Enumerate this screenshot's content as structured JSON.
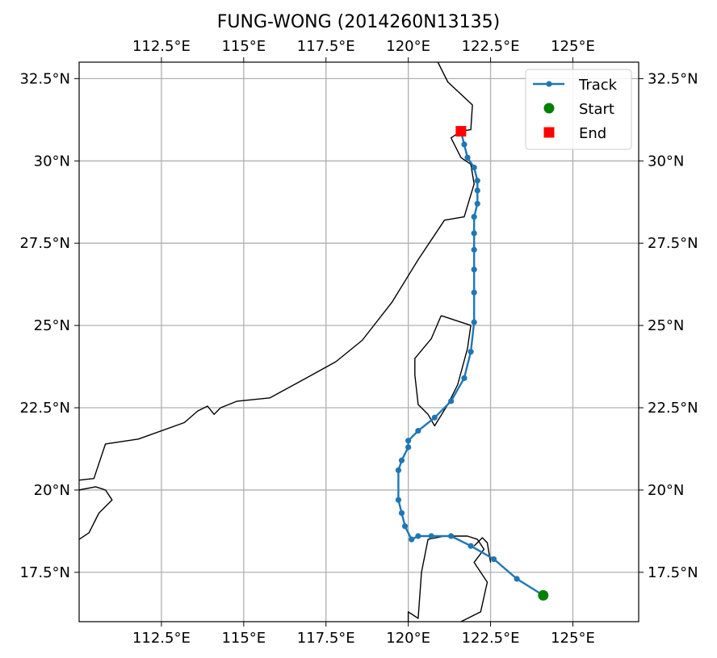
{
  "chart_data": {
    "type": "line",
    "title": "FUNG-WONG (2014260N13135)",
    "xlabel": "",
    "ylabel": "",
    "xlim": [
      110.0,
      127.0
    ],
    "ylim": [
      16.0,
      33.0
    ],
    "x_ticks": [
      112.5,
      115,
      117.5,
      120,
      122.5,
      125
    ],
    "x_tick_labels": [
      "112.5°E",
      "115°E",
      "117.5°E",
      "120°E",
      "122.5°E",
      "125°E"
    ],
    "y_ticks": [
      17.5,
      20,
      22.5,
      25,
      27.5,
      30,
      32.5
    ],
    "y_tick_labels": [
      "17.5°N",
      "20°N",
      "22.5°N",
      "25°N",
      "27.5°N",
      "30°N",
      "32.5°N"
    ],
    "grid": true,
    "legend_position": "top-right",
    "colors": {
      "track": "#1f77b4",
      "start": "#008000",
      "end": "#ff0000",
      "coast": "#000000",
      "grid": "#b0b0b0"
    },
    "series": [
      {
        "name": "Track",
        "points": [
          [
            124.1,
            16.8
          ],
          [
            123.3,
            17.3
          ],
          [
            122.6,
            17.9
          ],
          [
            121.9,
            18.3
          ],
          [
            121.3,
            18.6
          ],
          [
            120.7,
            18.6
          ],
          [
            120.3,
            18.6
          ],
          [
            120.1,
            18.5
          ],
          [
            119.9,
            18.9
          ],
          [
            119.8,
            19.3
          ],
          [
            119.7,
            19.7
          ],
          [
            119.7,
            20.6
          ],
          [
            119.8,
            20.9
          ],
          [
            120.0,
            21.3
          ],
          [
            120.0,
            21.5
          ],
          [
            120.3,
            21.8
          ],
          [
            120.8,
            22.2
          ],
          [
            121.3,
            22.7
          ],
          [
            121.7,
            23.4
          ],
          [
            121.9,
            24.2
          ],
          [
            122.0,
            25.1
          ],
          [
            122.0,
            26.0
          ],
          [
            122.0,
            26.7
          ],
          [
            122.0,
            27.3
          ],
          [
            122.0,
            27.8
          ],
          [
            122.0,
            28.3
          ],
          [
            122.1,
            28.7
          ],
          [
            122.1,
            29.1
          ],
          [
            122.1,
            29.4
          ],
          [
            122.0,
            29.8
          ],
          [
            121.8,
            30.1
          ],
          [
            121.7,
            30.5
          ],
          [
            121.6,
            30.9
          ]
        ]
      },
      {
        "name": "Start",
        "points": [
          [
            124.1,
            16.8
          ]
        ]
      },
      {
        "name": "End",
        "points": [
          [
            121.6,
            30.9
          ]
        ]
      }
    ],
    "coastlines": [
      [
        [
          110.0,
          20.3
        ],
        [
          110.45,
          20.35
        ],
        [
          110.8,
          21.4
        ],
        [
          111.8,
          21.55
        ],
        [
          113.2,
          22.05
        ],
        [
          113.6,
          22.4
        ],
        [
          113.9,
          22.55
        ],
        [
          114.1,
          22.3
        ],
        [
          114.3,
          22.5
        ],
        [
          114.8,
          22.7
        ],
        [
          115.8,
          22.8
        ],
        [
          116.9,
          23.4
        ],
        [
          117.8,
          23.9
        ],
        [
          118.6,
          24.55
        ],
        [
          119.5,
          25.7
        ],
        [
          120.3,
          27.0
        ],
        [
          121.1,
          28.2
        ],
        [
          121.7,
          28.3
        ],
        [
          122.0,
          29.3
        ],
        [
          121.9,
          29.9
        ],
        [
          121.6,
          30.1
        ],
        [
          121.3,
          30.7
        ],
        [
          121.6,
          30.9
        ],
        [
          121.9,
          30.95
        ],
        [
          121.95,
          31.7
        ],
        [
          121.2,
          32.4
        ],
        [
          120.9,
          33.0
        ]
      ],
      [
        [
          110.0,
          20.0
        ],
        [
          110.5,
          20.1
        ],
        [
          110.8,
          20.0
        ],
        [
          111.0,
          19.7
        ],
        [
          110.6,
          19.3
        ],
        [
          110.3,
          18.7
        ],
        [
          110.0,
          18.5
        ]
      ],
      [
        [
          121.0,
          25.3
        ],
        [
          121.9,
          25.0
        ],
        [
          121.8,
          24.3
        ],
        [
          121.5,
          23.2
        ],
        [
          121.2,
          22.6
        ],
        [
          120.8,
          21.95
        ],
        [
          120.6,
          22.3
        ],
        [
          120.3,
          22.6
        ],
        [
          120.2,
          23.5
        ],
        [
          120.2,
          24.0
        ],
        [
          120.7,
          24.6
        ],
        [
          121.0,
          25.3
        ]
      ],
      [
        [
          120.0,
          16.0
        ],
        [
          120.0,
          16.3
        ],
        [
          120.3,
          16.1
        ],
        [
          120.4,
          17.5
        ],
        [
          120.6,
          18.5
        ],
        [
          121.1,
          18.6
        ],
        [
          121.8,
          18.6
        ],
        [
          122.1,
          18.5
        ],
        [
          122.3,
          18.2
        ],
        [
          122.0,
          17.8
        ],
        [
          122.4,
          17.2
        ],
        [
          122.2,
          16.3
        ],
        [
          121.6,
          16.0
        ]
      ],
      [
        [
          122.0,
          18.3
        ],
        [
          122.25,
          18.55
        ],
        [
          122.4,
          18.4
        ],
        [
          122.5,
          17.8
        ]
      ]
    ]
  }
}
